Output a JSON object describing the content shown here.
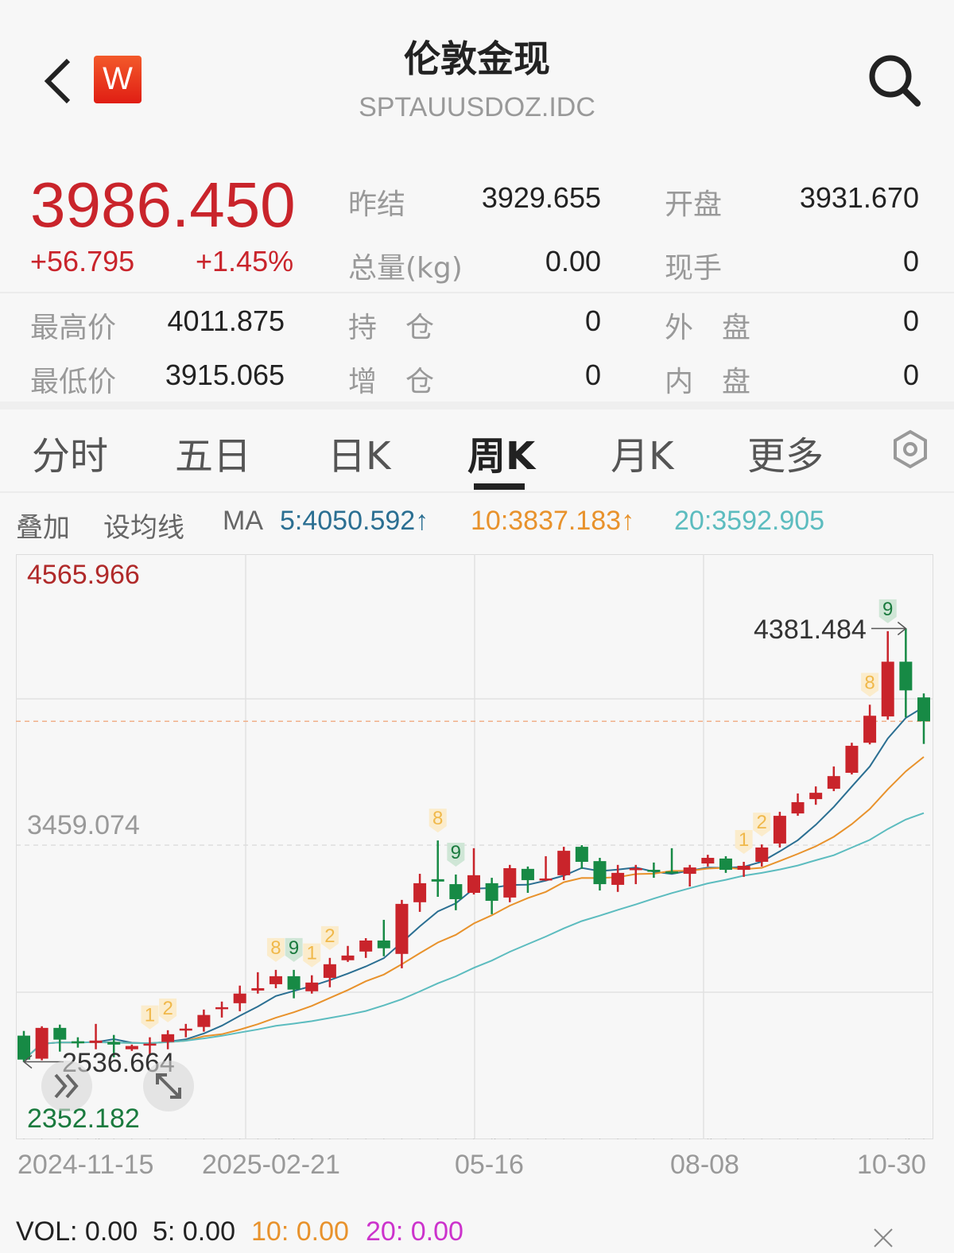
{
  "header": {
    "title": "伦敦金现",
    "code": "SPTAUUSDOZ.IDC",
    "logo_letter": "W",
    "back_icon": "chevron-left-icon",
    "search_icon": "search-icon"
  },
  "quote": {
    "price": "3986.450",
    "change": "+56.795",
    "change_pct": "+1.45%",
    "stats": [
      {
        "label": "昨结",
        "value": "3929.655"
      },
      {
        "label": "开盘",
        "value": "3931.670"
      },
      {
        "label": "总量(kg)",
        "value": "0.00"
      },
      {
        "label": "现手",
        "value": "0"
      },
      {
        "label": "最高价",
        "value": "4011.875"
      },
      {
        "label": "持　仓",
        "value": "0"
      },
      {
        "label": "外　盘",
        "value": "0"
      },
      {
        "label": "最低价",
        "value": "3915.065"
      },
      {
        "label": "增　仓",
        "value": "0"
      },
      {
        "label": "内　盘",
        "value": "0"
      }
    ]
  },
  "tabs": [
    {
      "label": "分时"
    },
    {
      "label": "五日"
    },
    {
      "label": "日K"
    },
    {
      "label": "周K",
      "active": true
    },
    {
      "label": "月K"
    },
    {
      "label": "更多"
    }
  ],
  "settings_icon": "hexagon-gear-icon",
  "ma_bar": {
    "overlay": "叠加",
    "set_ma": "设均线",
    "ma": "MA",
    "ma5": "5:4050.592↑",
    "ma10": "10:3837.183↑",
    "ma20": "20:3592.905"
  },
  "colors": {
    "up": "#c9242b",
    "down": "#178a45",
    "ma5": "#2b6f92",
    "ma10": "#e8922c",
    "ma20": "#5cbcbf",
    "vol20": "#cc33cc",
    "last_price_line": "#f0b08a"
  },
  "chart_data": {
    "type": "candlestick",
    "period": "weekly",
    "ylim": [
      2352.182,
      4565.966
    ],
    "y_labels": {
      "max": "4565.966",
      "mid": "3459.074",
      "min": "2352.182"
    },
    "annotations": {
      "high": "4381.484",
      "low": "2536.664"
    },
    "last_price": 3986.45,
    "x_ticks": [
      "2024-11-15",
      "2025-02-21",
      "05-16",
      "08-08",
      "10-30"
    ],
    "x_tick_index": [
      4,
      14,
      26,
      38,
      49
    ],
    "grid": true,
    "candles": [
      [
        2648,
        2546,
        2668,
        2536.664
      ],
      [
        2550,
        2681,
        2688,
        2543
      ],
      [
        2681,
        2631,
        2695,
        2580
      ],
      [
        2624,
        2617,
        2641,
        2597
      ],
      [
        2617,
        2627,
        2698,
        2590
      ],
      [
        2621,
        2610,
        2651,
        2556
      ],
      [
        2590,
        2604,
        2610,
        2583
      ],
      [
        2607,
        2614,
        2641,
        2563
      ],
      [
        2621,
        2654,
        2671,
        2590
      ],
      [
        2671,
        2678,
        2698,
        2641
      ],
      [
        2685,
        2736,
        2759,
        2665
      ],
      [
        2763,
        2769,
        2793,
        2725
      ],
      [
        2786,
        2827,
        2861,
        2752
      ],
      [
        2840,
        2850,
        2918,
        2827
      ],
      [
        2867,
        2901,
        2928,
        2850
      ],
      [
        2901,
        2844,
        2928,
        2807
      ],
      [
        2837,
        2874,
        2905,
        2827
      ],
      [
        2894,
        2952,
        2979,
        2854
      ],
      [
        2969,
        2989,
        3030,
        2962
      ],
      [
        3006,
        3053,
        3063,
        2979
      ],
      [
        3053,
        3020,
        3141,
        2986
      ],
      [
        2996,
        3209,
        3226,
        2935
      ],
      [
        3216,
        3297,
        3337,
        3175
      ],
      [
        3314,
        3304,
        3479,
        3239
      ],
      [
        3293,
        3229,
        3334,
        3182
      ],
      [
        3256,
        3331,
        3446,
        3249
      ],
      [
        3297,
        3222,
        3320,
        3165
      ],
      [
        3236,
        3361,
        3375,
        3216
      ],
      [
        3358,
        3310,
        3368,
        3256
      ],
      [
        3310,
        3317,
        3412,
        3307
      ],
      [
        3331,
        3435,
        3452,
        3310
      ],
      [
        3452,
        3388,
        3459,
        3358
      ],
      [
        3391,
        3293,
        3405,
        3266
      ],
      [
        3290,
        3341,
        3375,
        3260
      ],
      [
        3354,
        3361,
        3375,
        3293
      ],
      [
        3354,
        3347,
        3385,
        3320
      ],
      [
        3347,
        3341,
        3446,
        3337
      ],
      [
        3337,
        3364,
        3375,
        3283
      ],
      [
        3381,
        3405,
        3418,
        3368
      ],
      [
        3402,
        3354,
        3412,
        3341
      ],
      [
        3354,
        3371,
        3388,
        3324
      ],
      [
        3388,
        3449,
        3462,
        3368
      ],
      [
        3466,
        3584,
        3601,
        3449
      ],
      [
        3594,
        3642,
        3679,
        3584
      ],
      [
        3655,
        3682,
        3709,
        3631
      ],
      [
        3699,
        3753,
        3794,
        3689
      ],
      [
        3767,
        3882,
        3895,
        3760
      ],
      [
        3895,
        4010,
        4057,
        3888
      ],
      [
        4007,
        4240,
        4370,
        3993
      ],
      [
        4240,
        4118,
        4381.484,
        4003
      ],
      [
        4088,
        3986.45,
        4105,
        3890
      ]
    ],
    "markers": [
      {
        "index": 7,
        "label": "1",
        "kind": "buy"
      },
      {
        "index": 8,
        "label": "2",
        "kind": "buy"
      },
      {
        "index": 14,
        "label": "8",
        "kind": "buy"
      },
      {
        "index": 15,
        "label": "9",
        "kind": "sell"
      },
      {
        "index": 16,
        "label": "1",
        "kind": "buy"
      },
      {
        "index": 17,
        "label": "2",
        "kind": "buy"
      },
      {
        "index": 23,
        "label": "8",
        "kind": "buy"
      },
      {
        "index": 24,
        "label": "9",
        "kind": "sell"
      },
      {
        "index": 40,
        "label": "1",
        "kind": "buy"
      },
      {
        "index": 41,
        "label": "2",
        "kind": "buy"
      },
      {
        "index": 47,
        "label": "8",
        "kind": "buy"
      },
      {
        "index": 48,
        "label": "9",
        "kind": "sell"
      }
    ]
  },
  "controls": {
    "scroll_icon": "double-chevron-right-icon",
    "expand_icon": "expand-arrows-icon"
  },
  "volume": {
    "vol": "VOL: 0.00",
    "v5": "5: 0.00",
    "v10": "10: 0.00",
    "v20": "20: 0.00",
    "close_icon": "close-icon"
  }
}
